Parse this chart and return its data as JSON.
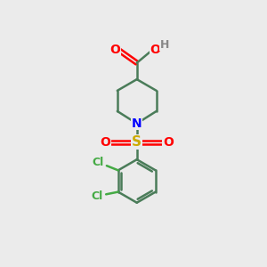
{
  "background_color": "#ebebeb",
  "bond_color": "#4a7c59",
  "n_color": "#0000ff",
  "o_color": "#ff0000",
  "s_color": "#ccaa00",
  "cl_color": "#44aa44",
  "h_color": "#888888",
  "figsize": [
    3.0,
    3.0
  ],
  "dpi": 100,
  "xlim": [
    0,
    10
  ],
  "ylim": [
    0,
    10
  ]
}
